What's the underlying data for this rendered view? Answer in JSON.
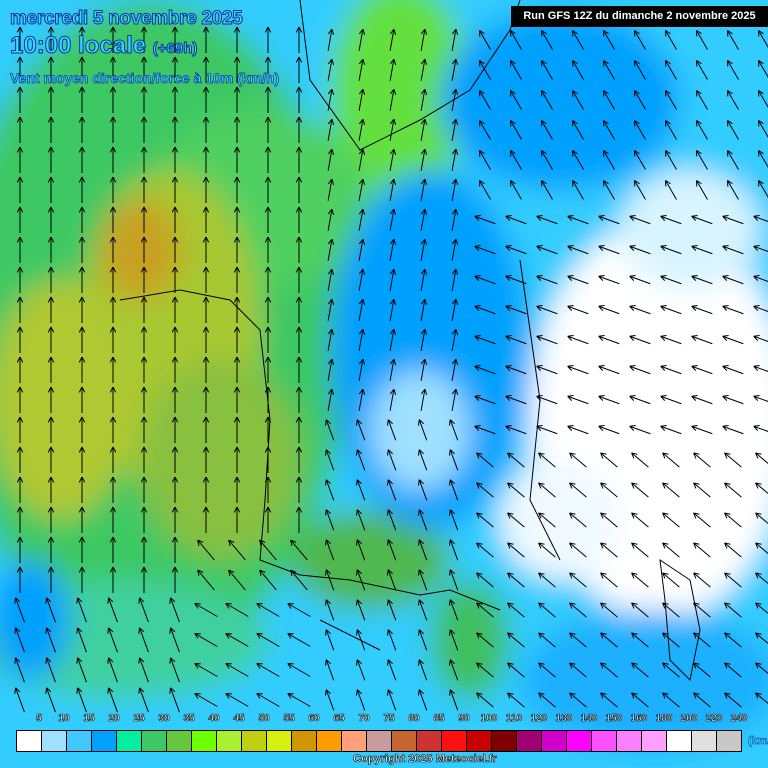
{
  "header": {
    "date": "mercredi 5 novembre 2025",
    "time": "10:00 locale",
    "lead": "(+69h)",
    "parameter": "Vent moyen direction/force à 10m (km/h)",
    "run": "Run GFS 12Z du dimanche 2 novembre 2025"
  },
  "legend": {
    "unit": "(km/h)",
    "labels": [
      "5",
      "10",
      "15",
      "20",
      "25",
      "30",
      "35",
      "40",
      "45",
      "50",
      "55",
      "60",
      "65",
      "70",
      "75",
      "80",
      "85",
      "90",
      "100",
      "110",
      "120",
      "130",
      "140",
      "150",
      "160",
      "180",
      "200",
      "220",
      "240"
    ],
    "colors": [
      "#ffffff",
      "#9fe0ff",
      "#40c8ff",
      "#00a0ff",
      "#00f0a0",
      "#3cc864",
      "#64c83c",
      "#6eff00",
      "#a8f030",
      "#c0d010",
      "#d8f010",
      "#d09800",
      "#ff9c00",
      "#ffa078",
      "#c89c9c",
      "#c86432",
      "#d03232",
      "#ff1010",
      "#c80000",
      "#7f0000",
      "#a00070",
      "#d000c8",
      "#ff00ff",
      "#ff50ff",
      "#ff80ff",
      "#ffa0ff",
      "#ffffff",
      "#e0e0e0",
      "#c8c8c8"
    ]
  },
  "footer": {
    "copyright": "Copyright 2025 Meteociel.fr"
  }
}
